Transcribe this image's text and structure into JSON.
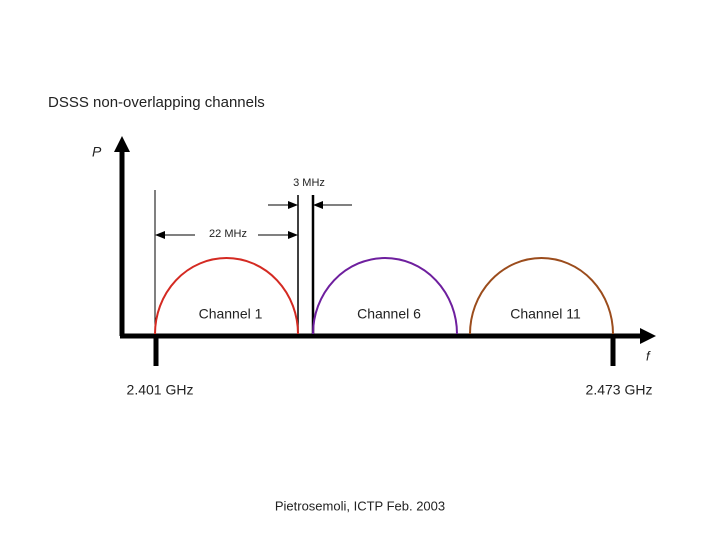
{
  "title": "DSSS non-overlapping channels",
  "axes": {
    "y_label": "P",
    "x_label": "f"
  },
  "dimensions": {
    "spacing": "3 MHz",
    "width": "22 MHz"
  },
  "channels": [
    {
      "label": "Channel 1",
      "color": "#d42a22"
    },
    {
      "label": "Channel 6",
      "color": "#6e1f9e"
    },
    {
      "label": "Channel 11",
      "color": "#9b4c1c"
    }
  ],
  "frequencies": {
    "start": "2.401 GHz",
    "end": "2.473 GHz"
  },
  "footer": "Pietrosemoli, ICTP Feb. 2003"
}
